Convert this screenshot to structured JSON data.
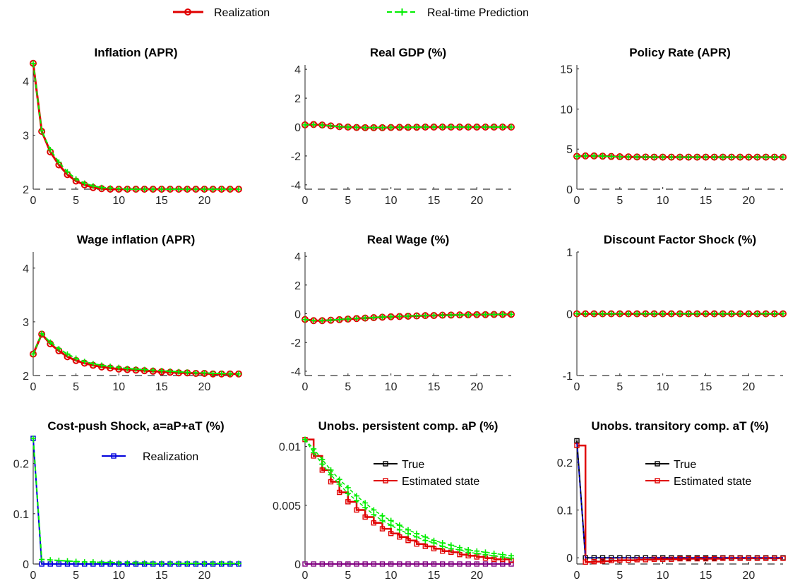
{
  "legend": {
    "realization": "Realization",
    "prediction": "Real-time Prediction"
  },
  "colors": {
    "realization": "#e00000",
    "prediction": "#00ee00",
    "blue": "#0000dd",
    "black": "#000000",
    "purple": "#800080",
    "axis": "#262626"
  },
  "chart_data": [
    {
      "type": "line",
      "title": "Inflation (APR)",
      "xlim": [
        0,
        24
      ],
      "ylim": [
        2,
        4.3
      ],
      "xticks": [
        0,
        5,
        10,
        15,
        20
      ],
      "yticks": [
        2,
        3,
        4
      ],
      "x": [
        0,
        1,
        2,
        3,
        4,
        5,
        6,
        7,
        8,
        9,
        10,
        11,
        12,
        13,
        14,
        15,
        16,
        17,
        18,
        19,
        20,
        21,
        22,
        23,
        24
      ],
      "series": [
        {
          "name": "Realization",
          "values": [
            4.33,
            3.07,
            2.69,
            2.45,
            2.27,
            2.15,
            2.08,
            2.03,
            2.01,
            2.0,
            2.0,
            2.0,
            2.0,
            2.0,
            2.0,
            2.0,
            2.0,
            2.0,
            2.0,
            2.0,
            2.0,
            2.0,
            2.0,
            2.0,
            2.0
          ]
        },
        {
          "name": "Real-time Prediction",
          "values": [
            4.33,
            3.08,
            2.73,
            2.5,
            2.32,
            2.19,
            2.11,
            2.06,
            2.03,
            2.02,
            2.01,
            2.0,
            2.0,
            2.0,
            2.0,
            2.0,
            2.0,
            2.0,
            2.0,
            2.0,
            2.0,
            2.0,
            2.0,
            2.0,
            2.0
          ]
        }
      ]
    },
    {
      "type": "line",
      "title": "Real GDP (%)",
      "xlim": [
        0,
        24
      ],
      "ylim": [
        -4.3,
        4.3
      ],
      "xticks": [
        0,
        5,
        10,
        15,
        20
      ],
      "yticks": [
        -4,
        -2,
        0,
        2,
        4
      ],
      "x": [
        0,
        1,
        2,
        3,
        4,
        5,
        6,
        7,
        8,
        9,
        10,
        11,
        12,
        13,
        14,
        15,
        16,
        17,
        18,
        19,
        20,
        21,
        22,
        23,
        24
      ],
      "series": [
        {
          "name": "Realization",
          "values": [
            0.15,
            0.18,
            0.14,
            0.08,
            0.03,
            0.0,
            -0.03,
            -0.04,
            -0.04,
            -0.04,
            -0.03,
            -0.02,
            -0.02,
            -0.01,
            0.0,
            0.0,
            0.0,
            0.0,
            0.0,
            0.0,
            0.0,
            0.0,
            0.0,
            0.0,
            0.0
          ]
        },
        {
          "name": "Real-time Prediction",
          "values": [
            0.15,
            0.17,
            0.13,
            0.08,
            0.03,
            0.0,
            -0.02,
            -0.03,
            -0.03,
            -0.03,
            -0.02,
            -0.02,
            -0.01,
            -0.01,
            0.0,
            0.0,
            0.0,
            0.0,
            0.0,
            0.0,
            0.0,
            0.0,
            0.0,
            0.0,
            0.0
          ]
        }
      ]
    },
    {
      "type": "line",
      "title": "Policy Rate (APR)",
      "xlim": [
        0,
        24
      ],
      "ylim": [
        0,
        15.5
      ],
      "xticks": [
        0,
        5,
        10,
        15,
        20
      ],
      "yticks": [
        0,
        5,
        10,
        15
      ],
      "x": [
        0,
        1,
        2,
        3,
        4,
        5,
        6,
        7,
        8,
        9,
        10,
        11,
        12,
        13,
        14,
        15,
        16,
        17,
        18,
        19,
        20,
        21,
        22,
        23,
        24
      ],
      "series": [
        {
          "name": "Realization",
          "values": [
            4.1,
            4.15,
            4.15,
            4.12,
            4.08,
            4.05,
            4.03,
            4.02,
            4.01,
            4.0,
            4.0,
            4.0,
            4.0,
            4.0,
            4.0,
            4.0,
            4.0,
            4.0,
            4.0,
            4.0,
            4.0,
            4.0,
            4.0,
            4.0,
            4.0
          ]
        },
        {
          "name": "Real-time Prediction",
          "values": [
            4.1,
            4.15,
            4.15,
            4.12,
            4.08,
            4.05,
            4.03,
            4.02,
            4.01,
            4.0,
            4.0,
            4.0,
            4.0,
            4.0,
            4.0,
            4.0,
            4.0,
            4.0,
            4.0,
            4.0,
            4.0,
            4.0,
            4.0,
            4.0,
            4.0
          ]
        }
      ]
    },
    {
      "type": "line",
      "title": "Wage inflation (APR)",
      "xlim": [
        0,
        24
      ],
      "ylim": [
        2,
        4.3
      ],
      "xticks": [
        0,
        5,
        10,
        15,
        20
      ],
      "yticks": [
        2,
        3,
        4
      ],
      "x": [
        0,
        1,
        2,
        3,
        4,
        5,
        6,
        7,
        8,
        9,
        10,
        11,
        12,
        13,
        14,
        15,
        16,
        17,
        18,
        19,
        20,
        21,
        22,
        23,
        24
      ],
      "series": [
        {
          "name": "Realization",
          "values": [
            2.4,
            2.77,
            2.59,
            2.46,
            2.35,
            2.28,
            2.23,
            2.19,
            2.16,
            2.14,
            2.12,
            2.11,
            2.1,
            2.09,
            2.08,
            2.07,
            2.06,
            2.05,
            2.05,
            2.04,
            2.04,
            2.03,
            2.03,
            2.03,
            2.03
          ]
        },
        {
          "name": "Real-time Prediction",
          "values": [
            2.4,
            2.78,
            2.62,
            2.5,
            2.4,
            2.32,
            2.26,
            2.22,
            2.19,
            2.17,
            2.15,
            2.13,
            2.12,
            2.11,
            2.1,
            2.09,
            2.08,
            2.07,
            2.06,
            2.05,
            2.05,
            2.04,
            2.04,
            2.03,
            2.03
          ]
        }
      ]
    },
    {
      "type": "line",
      "title": "Real Wage (%)",
      "xlim": [
        0,
        24
      ],
      "ylim": [
        -4.3,
        4.3
      ],
      "xticks": [
        0,
        5,
        10,
        15,
        20
      ],
      "yticks": [
        -4,
        -2,
        0,
        2,
        4
      ],
      "x": [
        0,
        1,
        2,
        3,
        4,
        5,
        6,
        7,
        8,
        9,
        10,
        11,
        12,
        13,
        14,
        15,
        16,
        17,
        18,
        19,
        20,
        21,
        22,
        23,
        24
      ],
      "series": [
        {
          "name": "Realization",
          "values": [
            -0.4,
            -0.48,
            -0.48,
            -0.45,
            -0.41,
            -0.37,
            -0.33,
            -0.3,
            -0.27,
            -0.24,
            -0.21,
            -0.19,
            -0.17,
            -0.15,
            -0.13,
            -0.12,
            -0.1,
            -0.09,
            -0.08,
            -0.07,
            -0.06,
            -0.06,
            -0.05,
            -0.05,
            -0.04
          ]
        },
        {
          "name": "Real-time Prediction",
          "values": [
            -0.4,
            -0.47,
            -0.47,
            -0.44,
            -0.4,
            -0.36,
            -0.32,
            -0.29,
            -0.26,
            -0.23,
            -0.2,
            -0.18,
            -0.16,
            -0.14,
            -0.13,
            -0.11,
            -0.1,
            -0.09,
            -0.08,
            -0.07,
            -0.06,
            -0.05,
            -0.05,
            -0.04,
            -0.04
          ]
        }
      ]
    },
    {
      "type": "line",
      "title": "Discount Factor Shock (%)",
      "xlim": [
        0,
        24
      ],
      "ylim": [
        -1,
        1
      ],
      "xticks": [
        0,
        5,
        10,
        15,
        20
      ],
      "yticks": [
        -1,
        0,
        1
      ],
      "x": [
        0,
        1,
        2,
        3,
        4,
        5,
        6,
        7,
        8,
        9,
        10,
        11,
        12,
        13,
        14,
        15,
        16,
        17,
        18,
        19,
        20,
        21,
        22,
        23,
        24
      ],
      "series": [
        {
          "name": "Realization",
          "values": [
            0,
            0,
            0,
            0,
            0,
            0,
            0,
            0,
            0,
            0,
            0,
            0,
            0,
            0,
            0,
            0,
            0,
            0,
            0,
            0,
            0,
            0,
            0,
            0,
            0
          ]
        },
        {
          "name": "Real-time Prediction",
          "values": [
            0,
            0,
            0,
            0,
            0,
            0,
            0,
            0,
            0,
            0,
            0,
            0,
            0,
            0,
            0,
            0,
            0,
            0,
            0,
            0,
            0,
            0,
            0,
            0,
            0
          ]
        }
      ]
    },
    {
      "type": "line",
      "title": "Cost-push Shock, a=aP+aT (%)",
      "xlim": [
        0,
        24
      ],
      "ylim": [
        0,
        0.25
      ],
      "xticks": [
        0,
        5,
        10,
        15,
        20
      ],
      "yticks": [
        0,
        0.1,
        0.2
      ],
      "legend": [
        "Realization"
      ],
      "x": [
        0,
        1,
        2,
        3,
        4,
        5,
        6,
        7,
        8,
        9,
        10,
        11,
        12,
        13,
        14,
        15,
        16,
        17,
        18,
        19,
        20,
        21,
        22,
        23,
        24
      ],
      "series": [
        {
          "name": "Realization",
          "values": [
            0.25,
            0,
            0,
            0,
            0,
            0,
            0,
            0,
            0,
            0,
            0,
            0,
            0,
            0,
            0,
            0,
            0,
            0,
            0,
            0,
            0,
            0,
            0,
            0,
            0
          ]
        },
        {
          "values": [
            0.25,
            0.009,
            0.008,
            0.007,
            0.006,
            0.005,
            0.004,
            0.004,
            0.003,
            0.003,
            0.002,
            0.002,
            0.002,
            0.002,
            0.001,
            0.001,
            0.001,
            0.001,
            0.001,
            0.001,
            0.001,
            0.001,
            0.001,
            0.001,
            0.001
          ]
        }
      ]
    },
    {
      "type": "line",
      "title": "Unobs. persistent comp. aP (%)",
      "xlim": [
        0,
        24
      ],
      "ylim": [
        0,
        0.0107
      ],
      "xticks": [
        0,
        5,
        10,
        15,
        20
      ],
      "yticks": [
        0,
        0.005,
        0.01
      ],
      "legend": [
        "True",
        "Estimated state"
      ],
      "x": [
        0,
        1,
        2,
        3,
        4,
        5,
        6,
        7,
        8,
        9,
        10,
        11,
        12,
        13,
        14,
        15,
        16,
        17,
        18,
        19,
        20,
        21,
        22,
        23,
        24
      ],
      "series": [
        {
          "name": "True",
          "values": [
            0,
            0,
            0,
            0,
            0,
            0,
            0,
            0,
            0,
            0,
            0,
            0,
            0,
            0,
            0,
            0,
            0,
            0,
            0,
            0,
            0,
            0,
            0,
            0,
            0
          ]
        },
        {
          "name": "Estimated state",
          "values": [
            0.0106,
            0.0092,
            0.008,
            0.007,
            0.0061,
            0.0053,
            0.0046,
            0.004,
            0.0035,
            0.003,
            0.0026,
            0.0023,
            0.002,
            0.0017,
            0.0015,
            0.0013,
            0.0011,
            0.001,
            0.0008,
            0.0007,
            0.0006,
            0.0005,
            0.0004,
            0.0004,
            0.0003
          ]
        },
        {
          "values": [
            0.0106,
            0.0098,
            0.0089,
            0.008,
            0.0072,
            0.0065,
            0.0058,
            0.0052,
            0.0046,
            0.0041,
            0.0037,
            0.0033,
            0.0029,
            0.0026,
            0.0023,
            0.002,
            0.0018,
            0.0016,
            0.0014,
            0.0012,
            0.0011,
            0.001,
            0.0009,
            0.0008,
            0.0007
          ]
        },
        {
          "values": [
            0.0106,
            0.0095,
            0.0085,
            0.0076,
            0.0068,
            0.006,
            0.0054,
            0.0048,
            0.0042,
            0.0037,
            0.0033,
            0.0029,
            0.0026,
            0.0023,
            0.002,
            0.0018,
            0.0015,
            0.0013,
            0.0012,
            0.001,
            0.0009,
            0.0008,
            0.0007,
            0.0006,
            0.0005
          ]
        }
      ]
    },
    {
      "type": "line",
      "title": "Unobs. transitory comp. aT (%)",
      "xlim": [
        0,
        24
      ],
      "ylim": [
        -0.013,
        0.25
      ],
      "xticks": [
        0,
        5,
        10,
        15,
        20
      ],
      "yticks": [
        0,
        0.1,
        0.2
      ],
      "legend": [
        "True",
        "Estimated state"
      ],
      "x": [
        0,
        1,
        2,
        3,
        4,
        5,
        6,
        7,
        8,
        9,
        10,
        11,
        12,
        13,
        14,
        15,
        16,
        17,
        18,
        19,
        20,
        21,
        22,
        23,
        24
      ],
      "series": [
        {
          "name": "True",
          "values": [
            0.245,
            0,
            0,
            0,
            0,
            0,
            0,
            0,
            0,
            0,
            0,
            0,
            0,
            0,
            0,
            0,
            0,
            0,
            0,
            0,
            0,
            0,
            0,
            0,
            0
          ]
        },
        {
          "name": "Estimated state",
          "values": [
            0.235,
            -0.009,
            -0.008,
            -0.007,
            -0.006,
            -0.005,
            -0.005,
            -0.004,
            -0.004,
            -0.003,
            -0.003,
            -0.003,
            -0.002,
            -0.002,
            -0.002,
            -0.002,
            -0.002,
            -0.001,
            -0.001,
            -0.001,
            -0.001,
            -0.001,
            -0.001,
            -0.001,
            -0.001
          ]
        },
        {
          "values": [
            0.24,
            0.0,
            0.0,
            0.0,
            0.0,
            0.0,
            0.0,
            0.0,
            0.0,
            0.0,
            0.0,
            0.0,
            0.0,
            0.0,
            0.0,
            0.0,
            0.0,
            0.0,
            0.0,
            0.0,
            0.0,
            0.0,
            0.0,
            0.0,
            0.0
          ]
        }
      ]
    }
  ]
}
